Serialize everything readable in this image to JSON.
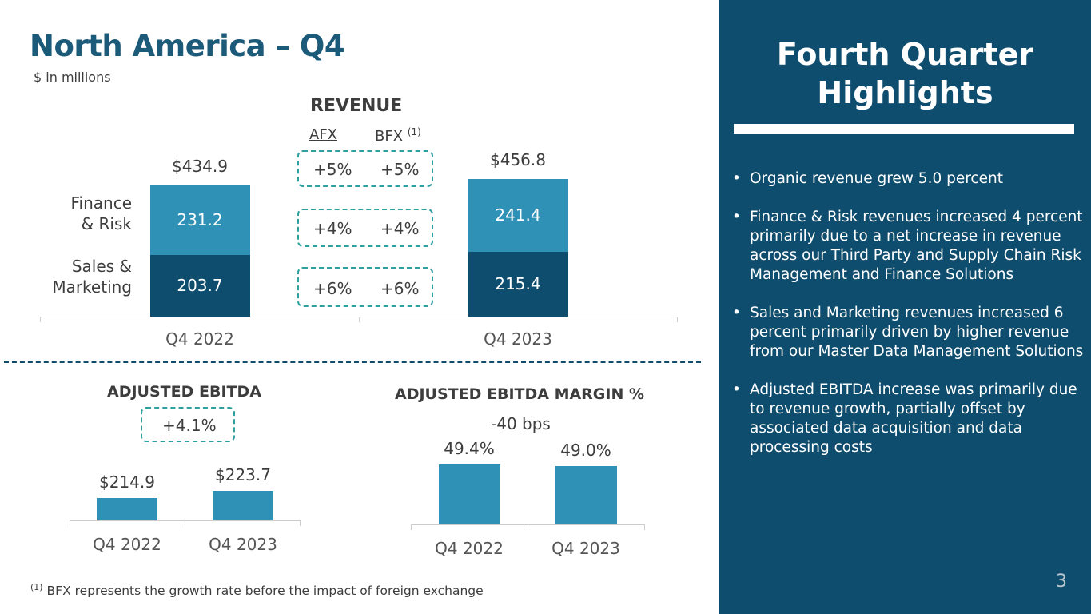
{
  "slide": {
    "title": "North America – Q4",
    "subtitle": "$ in millions",
    "page_number": "3",
    "footnote_marker": "(1)",
    "footnote_text": "BFX represents the growth rate before the impact of foreign exchange"
  },
  "revenue": {
    "heading": "REVENUE",
    "afx_label": "AFX",
    "bfx_label": "BFX",
    "bfx_marker": "(1)",
    "segment_labels": {
      "finance_line1": "Finance",
      "finance_line2": "& Risk",
      "sales_line1": "Sales &",
      "sales_line2": "Marketing"
    },
    "growth": [
      {
        "afx": "+5%",
        "bfx": "+5%"
      },
      {
        "afx": "+4%",
        "bfx": "+4%"
      },
      {
        "afx": "+6%",
        "bfx": "+6%"
      }
    ]
  },
  "ebitda": {
    "heading": "ADJUSTED EBITDA",
    "change": "+4.1%"
  },
  "margin": {
    "heading": "ADJUSTED EBITDA MARGIN %",
    "change": "-40 bps"
  },
  "chart_data": [
    {
      "type": "bar",
      "stacked": true,
      "title": "REVENUE",
      "categories": [
        "Q4 2022",
        "Q4 2023"
      ],
      "series": [
        {
          "name": "Sales & Marketing",
          "values": [
            203.7,
            215.4
          ],
          "labels": [
            "203.7",
            "215.4"
          ]
        },
        {
          "name": "Finance & Risk",
          "values": [
            231.2,
            241.4
          ],
          "labels": [
            "231.2",
            "241.4"
          ]
        }
      ],
      "totals": [
        434.9,
        456.8
      ],
      "total_labels": [
        "$434.9",
        "$456.8"
      ]
    },
    {
      "type": "bar",
      "title": "ADJUSTED EBITDA",
      "categories": [
        "Q4 2022",
        "Q4 2023"
      ],
      "values": [
        214.9,
        223.7
      ],
      "value_labels": [
        "$214.9",
        "$223.7"
      ]
    },
    {
      "type": "bar",
      "title": "ADJUSTED EBITDA MARGIN %",
      "categories": [
        "Q4 2022",
        "Q4 2023"
      ],
      "values": [
        49.4,
        49.0
      ],
      "value_labels": [
        "49.4%",
        "49.0%"
      ]
    }
  ],
  "highlights": {
    "title_line1": "Fourth Quarter",
    "title_line2": "Highlights",
    "bullet_glyph": "•",
    "items": [
      "Organic revenue grew 5.0 percent",
      "Finance & Risk revenues increased 4 percent primarily due to a net increase in revenue across our Third Party and Supply Chain Risk Management and Finance Solutions",
      "Sales and Marketing revenues increased 6 percent primarily driven by higher revenue from our Master Data Management Solutions",
      "Adjusted EBITDA increase was primarily due to revenue growth, partially offset by associated data acquisition and data processing costs"
    ]
  },
  "colors": {
    "dark_bar": "#0e4d6e",
    "light_bar": "#3091b6",
    "title": "#1c5a7a",
    "panel": "#0e4d6e",
    "dashed_box": "#2fa0a0"
  }
}
